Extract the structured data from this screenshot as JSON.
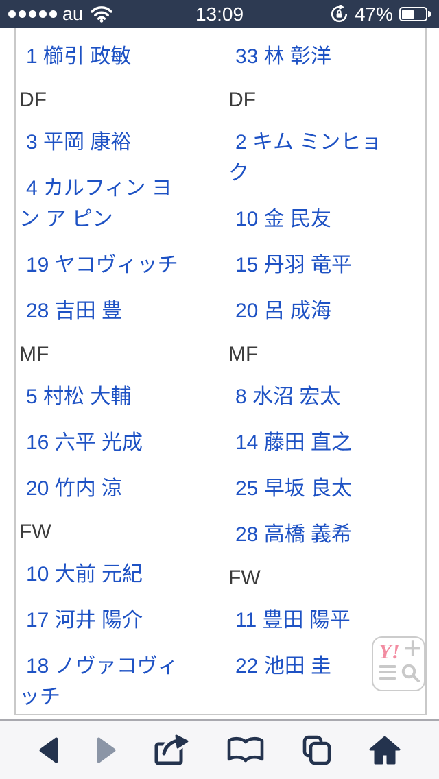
{
  "status_bar": {
    "carrier": "au",
    "signal_dots": 5,
    "time": "13:09",
    "battery_percent": "47%",
    "icons": [
      "signal-dots",
      "wifi-icon",
      "rotation-lock-icon",
      "battery-icon"
    ]
  },
  "colors": {
    "link_blue": "#1e52c4",
    "position_header_text": "#3b3b3b",
    "statusbar_bg": "#2d3a52",
    "toolbar_icon": "#24334e",
    "toolbar_icon_disabled": "#8b95a6",
    "yahoo_pink": "#f28ca1",
    "border_gray": "#c9c9c9"
  },
  "roster": {
    "columns": [
      {
        "entries": [
          {
            "type": "player",
            "label": "1 櫛引 政敏"
          },
          {
            "type": "header",
            "label": "DF"
          },
          {
            "type": "player",
            "label": "3 平岡 康裕"
          },
          {
            "type": "player",
            "label": "4 カルフィン ヨン ア ピン"
          },
          {
            "type": "player",
            "label": "19 ヤコヴィッチ"
          },
          {
            "type": "player",
            "label": "28 吉田 豊"
          },
          {
            "type": "header",
            "label": "MF"
          },
          {
            "type": "player",
            "label": "5 村松 大輔"
          },
          {
            "type": "player",
            "label": "16 六平 光成"
          },
          {
            "type": "player",
            "label": "20 竹内 涼"
          },
          {
            "type": "header",
            "label": "FW"
          },
          {
            "type": "player",
            "label": "10 大前 元紀"
          },
          {
            "type": "player",
            "label": "17 河井 陽介"
          },
          {
            "type": "player",
            "label": "18 ノヴァコヴィッチ"
          }
        ]
      },
      {
        "entries": [
          {
            "type": "player",
            "label": "33 林 彰洋"
          },
          {
            "type": "header",
            "label": "DF"
          },
          {
            "type": "player",
            "label": "2 キム ミンヒョク"
          },
          {
            "type": "player",
            "label": "10 金 民友"
          },
          {
            "type": "player",
            "label": "15 丹羽 竜平"
          },
          {
            "type": "player",
            "label": "20 呂 成海"
          },
          {
            "type": "header",
            "label": "MF"
          },
          {
            "type": "player",
            "label": "8 水沼 宏太"
          },
          {
            "type": "player",
            "label": "14 藤田 直之"
          },
          {
            "type": "player",
            "label": "25 早坂 良太"
          },
          {
            "type": "player",
            "label": "28 高橋 義希"
          },
          {
            "type": "header",
            "label": "FW"
          },
          {
            "type": "player",
            "label": "11 豊田 陽平"
          },
          {
            "type": "player",
            "label": "22 池田 圭"
          }
        ]
      }
    ]
  },
  "yahoo_widget": {
    "logo": "Y!",
    "icons": [
      "yahoo-logo",
      "plus-icon",
      "menu-icon",
      "search-icon"
    ]
  },
  "toolbar": {
    "icons": [
      "back",
      "forward",
      "share",
      "bookmarks",
      "tabs",
      "home"
    ]
  }
}
